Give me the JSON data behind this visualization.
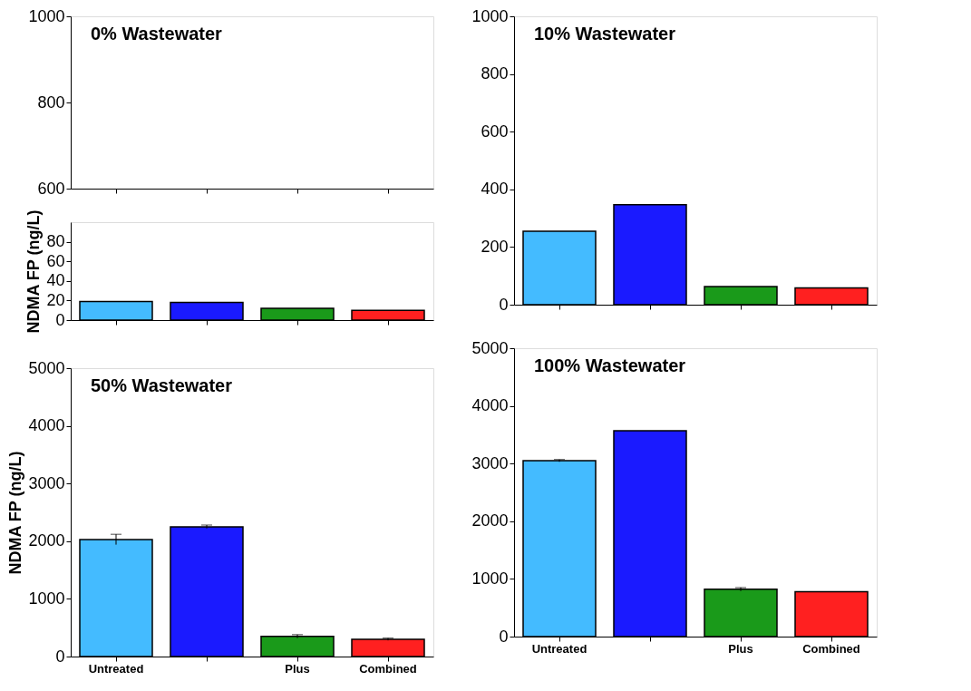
{
  "chart_data": [
    {
      "type": "bar",
      "title": "0% Wastewater",
      "categories": [
        null,
        null,
        null,
        null
      ],
      "values": [
        null,
        null,
        null,
        null
      ],
      "ylim": [
        600,
        1000
      ],
      "yticks": [
        600,
        800,
        1000
      ],
      "tick_labels": "y",
      "grid": false
    },
    {
      "type": "bar",
      "ylabel": "NDMA FP (ng/L)",
      "categories": [
        null,
        null,
        null,
        null
      ],
      "values": [
        19,
        18,
        12,
        10
      ],
      "colors": [
        "#44bbff",
        "#1a1aff",
        "#1a9a1a",
        "#ff2020"
      ],
      "ylim": [
        0,
        100
      ],
      "yticks": [
        0,
        20,
        40,
        60,
        80
      ],
      "tick_labels": "y",
      "grid": false
    },
    {
      "type": "bar",
      "title": "10% Wastewater",
      "categories": [
        null,
        null,
        null,
        null
      ],
      "values": [
        255,
        347,
        63,
        58
      ],
      "colors": [
        "#44bbff",
        "#1a1aff",
        "#1a9a1a",
        "#ff2020"
      ],
      "ylim": [
        0,
        1000
      ],
      "yticks": [
        0,
        200,
        400,
        600,
        800,
        1000
      ],
      "tick_labels": "y",
      "grid": false
    },
    {
      "type": "bar",
      "title": "50% Wastewater",
      "ylabel": "NDMA FP (ng/L)",
      "categories": [
        "Untreated",
        null,
        "Plus",
        "Combined"
      ],
      "values": [
        2030,
        2250,
        350,
        300
      ],
      "errors": [
        90,
        30,
        30,
        20
      ],
      "colors": [
        "#44bbff",
        "#1a1aff",
        "#1a9a1a",
        "#ff2020"
      ],
      "ylim": [
        0,
        5000
      ],
      "yticks": [
        0,
        1000,
        2000,
        3000,
        4000,
        5000
      ],
      "grid": false
    },
    {
      "type": "bar",
      "title": "100% Wastewater",
      "categories": [
        "Untreated",
        null,
        "Plus",
        "Combined"
      ],
      "values": [
        3050,
        3570,
        820,
        780
      ],
      "errors": [
        20,
        null,
        30,
        null
      ],
      "colors": [
        "#44bbff",
        "#1a1aff",
        "#1a9a1a",
        "#ff2020"
      ],
      "ylim": [
        0,
        5000
      ],
      "yticks": [
        0,
        1000,
        2000,
        3000,
        4000,
        5000
      ],
      "grid": false
    }
  ]
}
